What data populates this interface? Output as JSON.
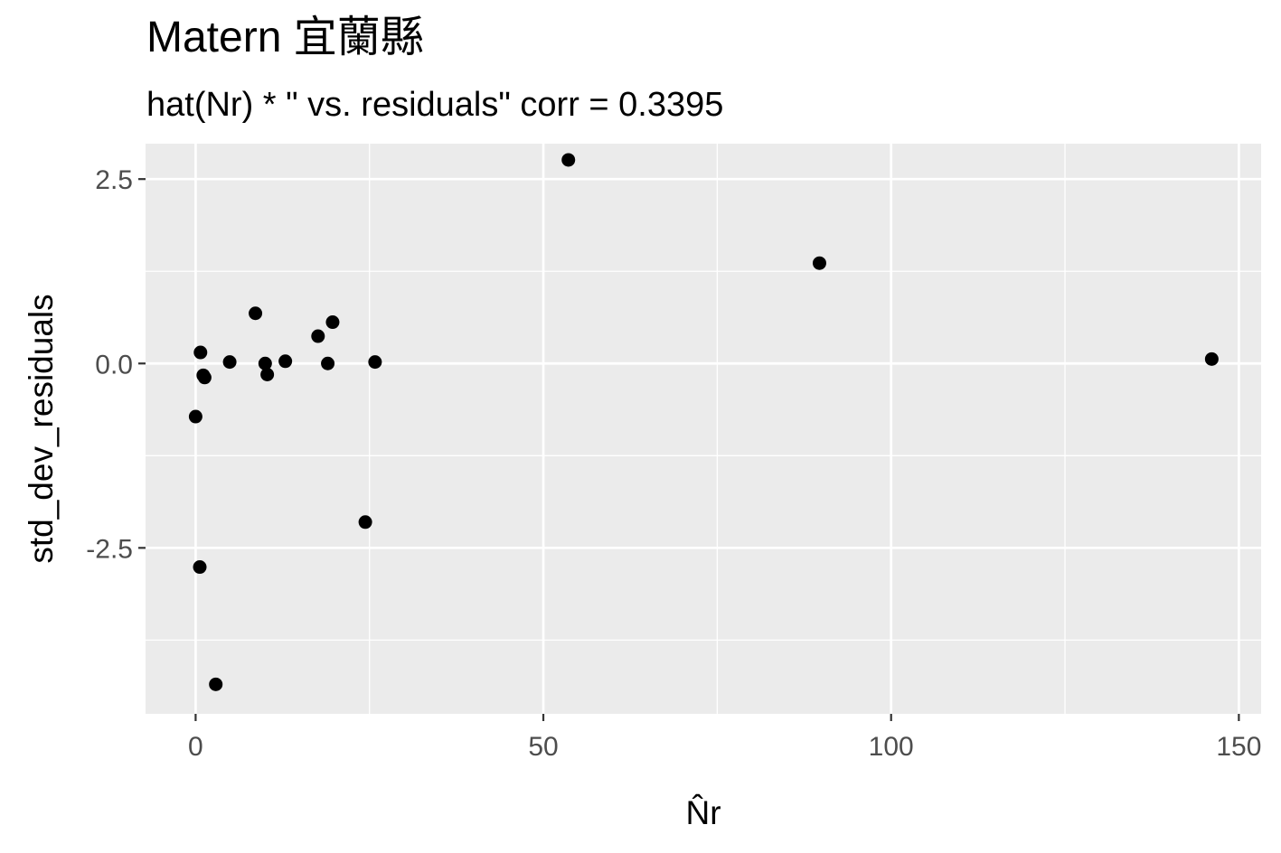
{
  "title": "Matern 宜蘭縣",
  "subtitle": "hat(Nr) * \"  vs. residuals\" corr = 0.3395",
  "chart_data": {
    "type": "scatter",
    "title": "Matern 宜蘭縣",
    "subtitle": "hat(Nr) * \"  vs. residuals\" corr = 0.3395",
    "xlabel": "N̂r",
    "ylabel": "std_dev_residuals",
    "xlim": [
      -7.2,
      153.2
    ],
    "ylim": [
      -4.75,
      2.98
    ],
    "x_ticks": [
      0,
      50,
      100,
      150
    ],
    "x_tick_labels": [
      "0",
      "50",
      "100",
      "150"
    ],
    "y_ticks": [
      -2.5,
      0.0,
      2.5
    ],
    "y_tick_labels": [
      "-2.5",
      "0.0",
      "2.5"
    ],
    "x_minor": [
      25,
      75,
      125
    ],
    "y_minor": [
      -3.75,
      -1.25,
      1.25
    ],
    "grid": true,
    "panel_color": "#ebebeb",
    "grid_color": "#ffffff",
    "point_color": "#000000",
    "points": [
      {
        "x": 0.0,
        "y": -0.72
      },
      {
        "x": 0.7,
        "y": 0.15
      },
      {
        "x": 1.1,
        "y": -0.16
      },
      {
        "x": 1.3,
        "y": -0.19
      },
      {
        "x": 0.6,
        "y": -2.76
      },
      {
        "x": 2.9,
        "y": -4.35
      },
      {
        "x": 4.9,
        "y": 0.02
      },
      {
        "x": 8.6,
        "y": 0.68
      },
      {
        "x": 10.0,
        "y": 0.0
      },
      {
        "x": 10.3,
        "y": -0.15
      },
      {
        "x": 12.9,
        "y": 0.03
      },
      {
        "x": 17.6,
        "y": 0.37
      },
      {
        "x": 19.0,
        "y": 0.0
      },
      {
        "x": 19.7,
        "y": 0.56
      },
      {
        "x": 24.4,
        "y": -2.15
      },
      {
        "x": 25.8,
        "y": 0.02
      },
      {
        "x": 53.6,
        "y": 2.76
      },
      {
        "x": 89.7,
        "y": 1.36
      },
      {
        "x": 146.1,
        "y": 0.06
      }
    ]
  }
}
